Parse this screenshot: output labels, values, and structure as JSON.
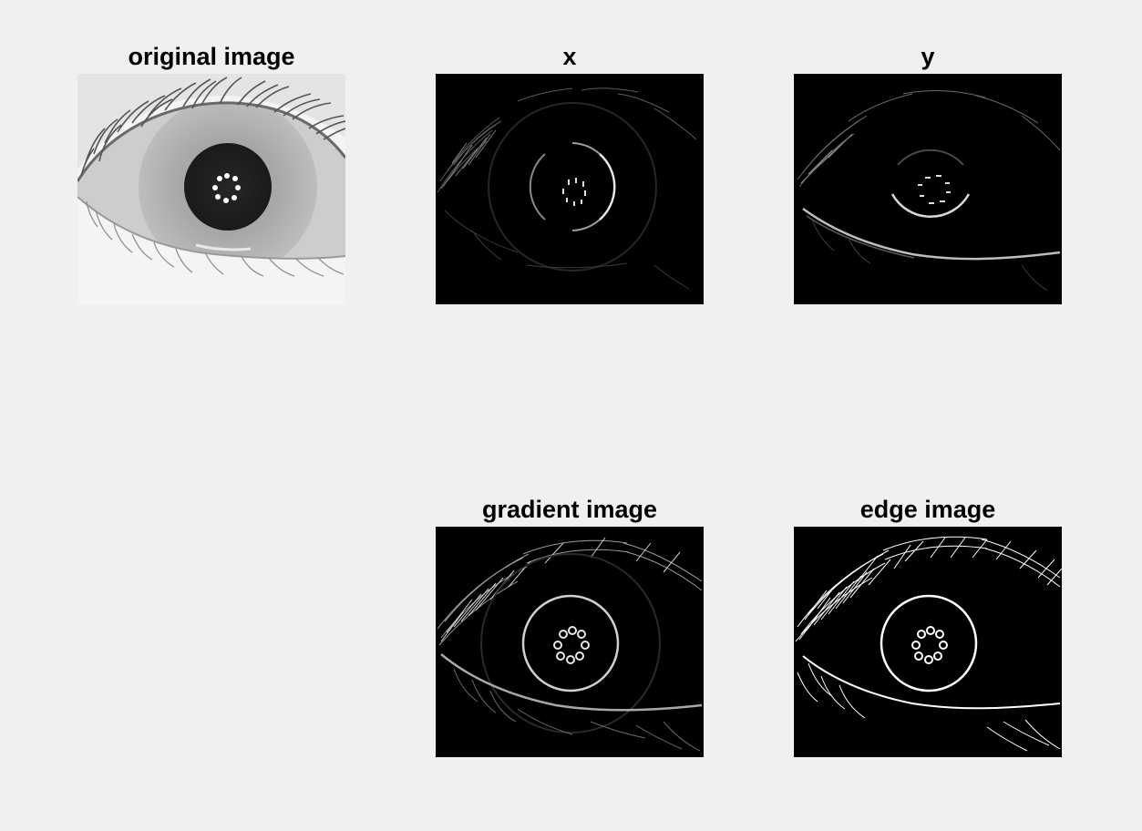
{
  "figure": {
    "background": "#f0f0f0",
    "panels": [
      {
        "id": "original",
        "title": "original image",
        "style": "original"
      },
      {
        "id": "x",
        "title": "x",
        "style": "grad-x"
      },
      {
        "id": "y",
        "title": "y",
        "style": "grad-y"
      },
      {
        "id": "gradient",
        "title": "gradient image",
        "style": "gradient"
      },
      {
        "id": "edge",
        "title": "edge image",
        "style": "edge"
      }
    ]
  }
}
